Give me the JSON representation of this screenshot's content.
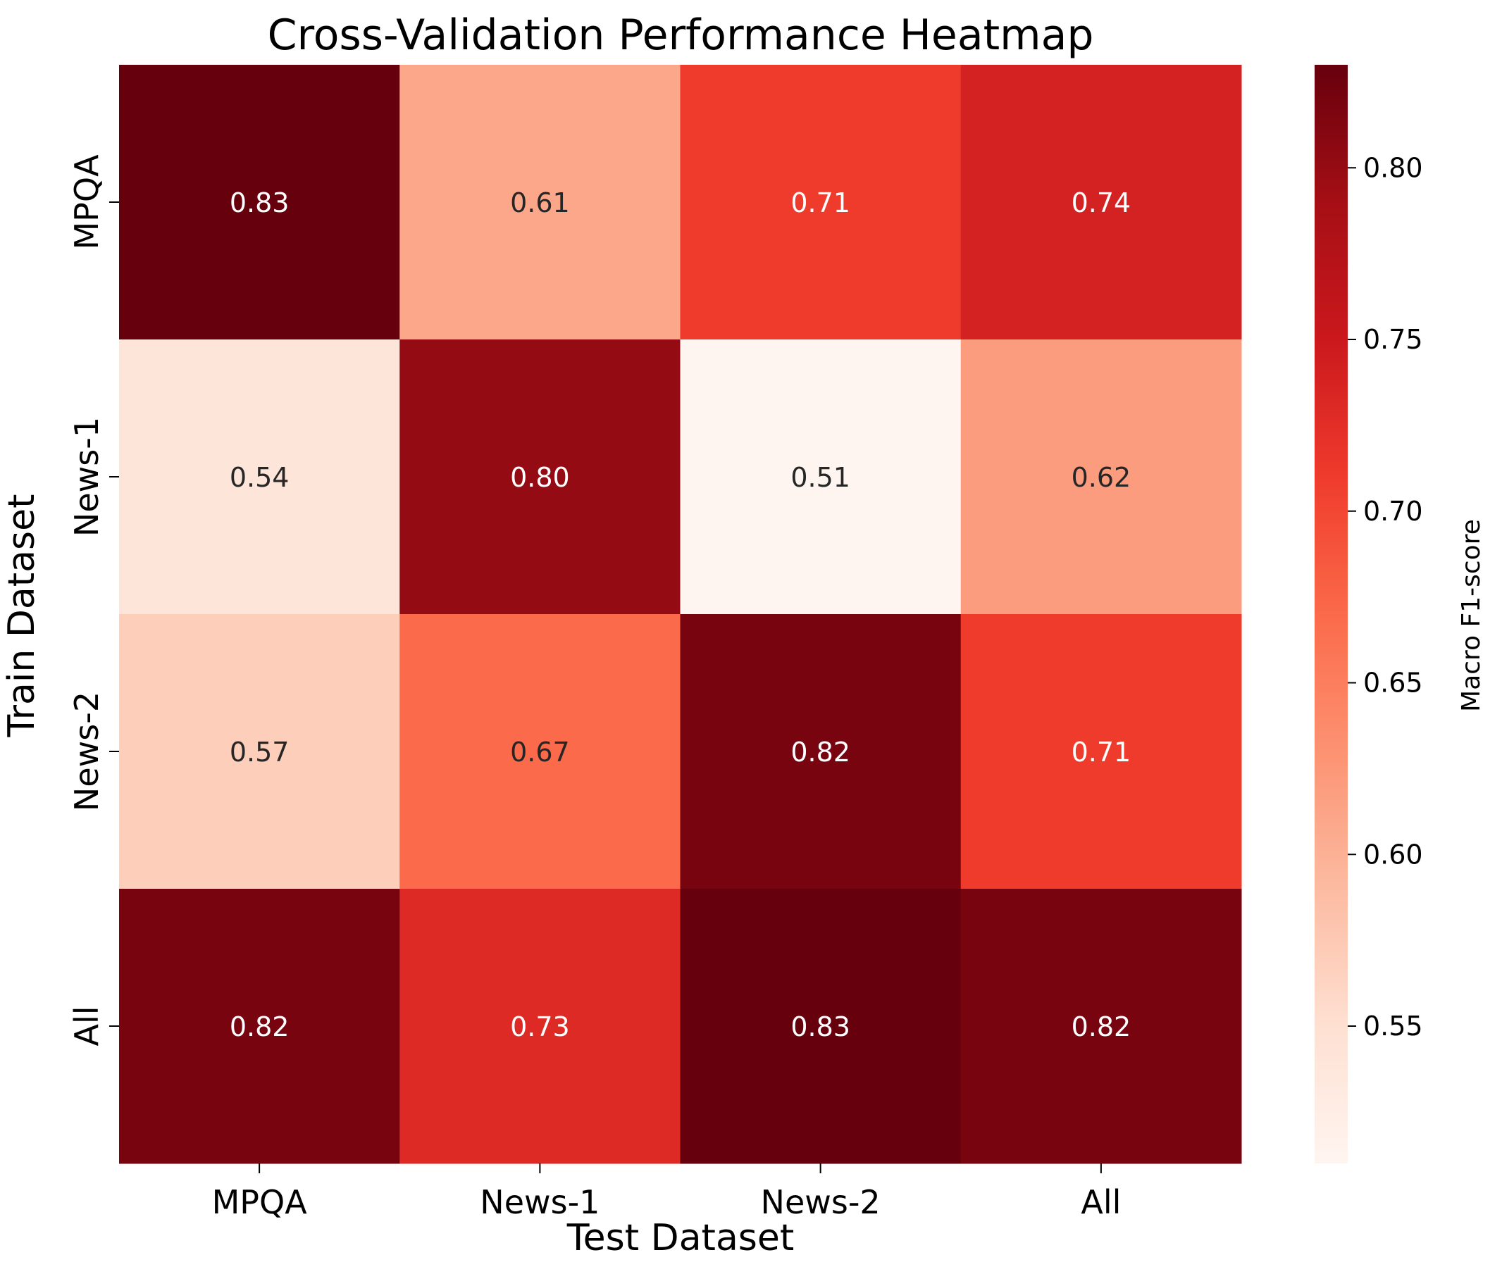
{
  "chart_data": {
    "type": "heatmap",
    "title": "Cross-Validation Performance Heatmap",
    "xlabel": "Test Dataset",
    "ylabel": "Train Dataset",
    "x_categories": [
      "MPQA",
      "News-1",
      "News-2",
      "All"
    ],
    "y_categories": [
      "MPQA",
      "News-1",
      "News-2",
      "All"
    ],
    "values": [
      [
        0.83,
        0.61,
        0.71,
        0.74
      ],
      [
        0.54,
        0.8,
        0.51,
        0.62
      ],
      [
        0.57,
        0.67,
        0.82,
        0.71
      ],
      [
        0.82,
        0.73,
        0.83,
        0.82
      ]
    ],
    "value_format": "0.00",
    "colorbar": {
      "label": "Macro F1-score",
      "range": [
        0.51,
        0.83
      ],
      "ticks": [
        0.55,
        0.6,
        0.65,
        0.7,
        0.75,
        0.8
      ],
      "tick_labels": [
        "0.55",
        "0.60",
        "0.65",
        "0.70",
        "0.75",
        "0.80"
      ]
    },
    "colormap": [
      "#fff5f0",
      "#fee0d2",
      "#fcbba1",
      "#fc9272",
      "#fb6a4a",
      "#ef3b2c",
      "#cb181d",
      "#a50f15",
      "#67000d"
    ],
    "annotation_colors": {
      "dark": "#262626",
      "light": "#ffffff"
    }
  }
}
